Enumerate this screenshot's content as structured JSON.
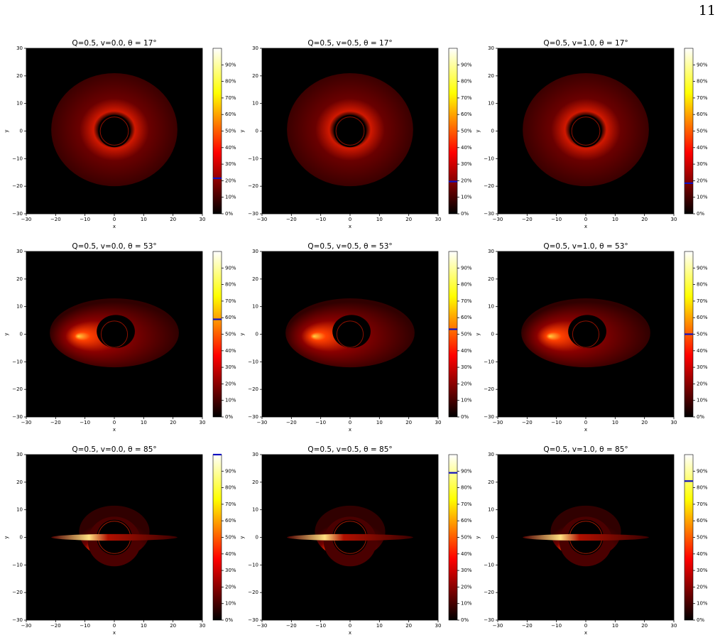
{
  "page_number": "11",
  "chart_data": [
    {
      "type": "image",
      "title": "Q=0.5, v=0.0, θ = 17°",
      "xlabel": "x",
      "ylabel": "y",
      "xlim": [
        -30,
        30
      ],
      "ylim": [
        -30,
        30
      ],
      "xticks": [
        {
          "value": -30,
          "label": "−30"
        },
        {
          "value": -20,
          "label": "−20"
        },
        {
          "value": -10,
          "label": "−10"
        },
        0,
        10,
        20,
        30
      ],
      "yticks": [
        {
          "value": -30,
          "label": "−30"
        },
        {
          "value": -20,
          "label": "−20"
        },
        {
          "value": -10,
          "label": "−10"
        },
        0,
        10,
        20,
        30
      ],
      "colorbar": {
        "lim": [
          0,
          100
        ],
        "ticks": [
          {
            "value": 0,
            "label": "0%"
          },
          {
            "value": 10,
            "label": "10%"
          },
          {
            "value": 20,
            "label": "20%"
          },
          {
            "value": 30,
            "label": "30%"
          },
          {
            "value": 40,
            "label": "40%"
          },
          {
            "value": 50,
            "label": "50%"
          },
          {
            "value": 60,
            "label": "60%"
          },
          {
            "value": 70,
            "label": "70%"
          },
          {
            "value": 80,
            "label": "80%"
          },
          {
            "value": 90,
            "label": "90%"
          }
        ],
        "marker": 21.5,
        "marker_color": "#1010c0"
      }
    },
    {
      "type": "image",
      "title": "Q=0.5, v=0.5, θ = 17°",
      "xlabel": "x",
      "ylabel": "y",
      "xlim": [
        -30,
        30
      ],
      "ylim": [
        -30,
        30
      ],
      "xticks": [
        {
          "value": -30,
          "label": "−30"
        },
        {
          "value": -20,
          "label": "−20"
        },
        {
          "value": -10,
          "label": "−10"
        },
        0,
        10,
        20,
        30
      ],
      "yticks": [
        {
          "value": -30,
          "label": "−30"
        },
        {
          "value": -20,
          "label": "−20"
        },
        {
          "value": -10,
          "label": "−10"
        },
        0,
        10,
        20,
        30
      ],
      "colorbar": {
        "lim": [
          0,
          100
        ],
        "ticks": [
          {
            "value": 0,
            "label": "0%"
          },
          {
            "value": 10,
            "label": "10%"
          },
          {
            "value": 20,
            "label": "20%"
          },
          {
            "value": 30,
            "label": "30%"
          },
          {
            "value": 40,
            "label": "40%"
          },
          {
            "value": 50,
            "label": "50%"
          },
          {
            "value": 60,
            "label": "60%"
          },
          {
            "value": 70,
            "label": "70%"
          },
          {
            "value": 80,
            "label": "80%"
          },
          {
            "value": 90,
            "label": "90%"
          }
        ],
        "marker": 19.5,
        "marker_color": "#1010c0"
      }
    },
    {
      "type": "image",
      "title": "Q=0.5, v=1.0, θ = 17°",
      "xlabel": "x",
      "ylabel": "y",
      "xlim": [
        -30,
        30
      ],
      "ylim": [
        -30,
        30
      ],
      "xticks": [
        {
          "value": -30,
          "label": "−30"
        },
        {
          "value": -20,
          "label": "−20"
        },
        {
          "value": -10,
          "label": "−10"
        },
        0,
        10,
        20,
        30
      ],
      "yticks": [
        {
          "value": -30,
          "label": "−30"
        },
        {
          "value": -20,
          "label": "−20"
        },
        {
          "value": -10,
          "label": "−10"
        },
        0,
        10,
        20,
        30
      ],
      "colorbar": {
        "lim": [
          0,
          100
        ],
        "ticks": [
          {
            "value": 0,
            "label": "0%"
          },
          {
            "value": 10,
            "label": "10%"
          },
          {
            "value": 20,
            "label": "20%"
          },
          {
            "value": 30,
            "label": "30%"
          },
          {
            "value": 40,
            "label": "40%"
          },
          {
            "value": 50,
            "label": "50%"
          },
          {
            "value": 60,
            "label": "60%"
          },
          {
            "value": 70,
            "label": "70%"
          },
          {
            "value": 80,
            "label": "80%"
          },
          {
            "value": 90,
            "label": "90%"
          }
        ],
        "marker": 18.5,
        "marker_color": "#1010c0"
      }
    },
    {
      "type": "image",
      "title": "Q=0.5, v=0.0, θ = 53°",
      "xlabel": "x",
      "ylabel": "y",
      "xlim": [
        -30,
        30
      ],
      "ylim": [
        -30,
        30
      ],
      "xticks": [
        {
          "value": -30,
          "label": "−30"
        },
        {
          "value": -20,
          "label": "−20"
        },
        {
          "value": -10,
          "label": "−10"
        },
        0,
        10,
        20,
        30
      ],
      "yticks": [
        {
          "value": -30,
          "label": "−30"
        },
        {
          "value": -20,
          "label": "−20"
        },
        {
          "value": -10,
          "label": "−10"
        },
        0,
        10,
        20,
        30
      ],
      "colorbar": {
        "lim": [
          0,
          100
        ],
        "ticks": [
          {
            "value": 0,
            "label": "0%"
          },
          {
            "value": 10,
            "label": "10%"
          },
          {
            "value": 20,
            "label": "20%"
          },
          {
            "value": 30,
            "label": "30%"
          },
          {
            "value": 40,
            "label": "40%"
          },
          {
            "value": 50,
            "label": "50%"
          },
          {
            "value": 60,
            "label": "60%"
          },
          {
            "value": 70,
            "label": "70%"
          },
          {
            "value": 80,
            "label": "80%"
          },
          {
            "value": 90,
            "label": "90%"
          }
        ],
        "marker": 59,
        "marker_color": "#1010c0"
      }
    },
    {
      "type": "image",
      "title": "Q=0.5, v=0.5, θ = 53°",
      "xlabel": "x",
      "ylabel": "y",
      "xlim": [
        -30,
        30
      ],
      "ylim": [
        -30,
        30
      ],
      "xticks": [
        {
          "value": -30,
          "label": "−30"
        },
        {
          "value": -20,
          "label": "−20"
        },
        {
          "value": -10,
          "label": "−10"
        },
        0,
        10,
        20,
        30
      ],
      "yticks": [
        {
          "value": -30,
          "label": "−30"
        },
        {
          "value": -20,
          "label": "−20"
        },
        {
          "value": -10,
          "label": "−10"
        },
        0,
        10,
        20,
        30
      ],
      "colorbar": {
        "lim": [
          0,
          100
        ],
        "ticks": [
          {
            "value": 0,
            "label": "0%"
          },
          {
            "value": 10,
            "label": "10%"
          },
          {
            "value": 20,
            "label": "20%"
          },
          {
            "value": 30,
            "label": "30%"
          },
          {
            "value": 40,
            "label": "40%"
          },
          {
            "value": 50,
            "label": "50%"
          },
          {
            "value": 60,
            "label": "60%"
          },
          {
            "value": 70,
            "label": "70%"
          },
          {
            "value": 80,
            "label": "80%"
          },
          {
            "value": 90,
            "label": "90%"
          }
        ],
        "marker": 53,
        "marker_color": "#1010c0"
      }
    },
    {
      "type": "image",
      "title": "Q=0.5, v=1.0, θ = 53°",
      "xlabel": "x",
      "ylabel": "y",
      "xlim": [
        -30,
        30
      ],
      "ylim": [
        -30,
        30
      ],
      "xticks": [
        {
          "value": -30,
          "label": "−30"
        },
        {
          "value": -20,
          "label": "−20"
        },
        {
          "value": -10,
          "label": "−10"
        },
        0,
        10,
        20,
        30
      ],
      "yticks": [
        {
          "value": -30,
          "label": "−30"
        },
        {
          "value": -20,
          "label": "−20"
        },
        {
          "value": -10,
          "label": "−10"
        },
        0,
        10,
        20,
        30
      ],
      "colorbar": {
        "lim": [
          0,
          100
        ],
        "ticks": [
          {
            "value": 0,
            "label": "0%"
          },
          {
            "value": 10,
            "label": "10%"
          },
          {
            "value": 20,
            "label": "20%"
          },
          {
            "value": 30,
            "label": "30%"
          },
          {
            "value": 40,
            "label": "40%"
          },
          {
            "value": 50,
            "label": "50%"
          },
          {
            "value": 60,
            "label": "60%"
          },
          {
            "value": 70,
            "label": "70%"
          },
          {
            "value": 80,
            "label": "80%"
          },
          {
            "value": 90,
            "label": "90%"
          }
        ],
        "marker": 50,
        "marker_color": "#1010c0"
      }
    },
    {
      "type": "image",
      "title": "Q=0.5, v=0.0, θ = 85°",
      "xlabel": "x",
      "ylabel": "y",
      "xlim": [
        -30,
        30
      ],
      "ylim": [
        -30,
        30
      ],
      "xticks": [
        {
          "value": -30,
          "label": "−30"
        },
        {
          "value": -20,
          "label": "−20"
        },
        {
          "value": -10,
          "label": "−10"
        },
        0,
        10,
        20,
        30
      ],
      "yticks": [
        {
          "value": -30,
          "label": "−30"
        },
        {
          "value": -20,
          "label": "−20"
        },
        {
          "value": -10,
          "label": "−10"
        },
        0,
        10,
        20,
        30
      ],
      "colorbar": {
        "lim": [
          0,
          100
        ],
        "ticks": [
          {
            "value": 0,
            "label": "0%"
          },
          {
            "value": 10,
            "label": "10%"
          },
          {
            "value": 20,
            "label": "20%"
          },
          {
            "value": 30,
            "label": "30%"
          },
          {
            "value": 40,
            "label": "40%"
          },
          {
            "value": 50,
            "label": "50%"
          },
          {
            "value": 60,
            "label": "60%"
          },
          {
            "value": 70,
            "label": "70%"
          },
          {
            "value": 80,
            "label": "80%"
          },
          {
            "value": 90,
            "label": "90%"
          }
        ],
        "marker": 100,
        "marker_color": "#1010c0"
      }
    },
    {
      "type": "image",
      "title": "Q=0.5, v=0.5, θ = 85°",
      "xlabel": "x",
      "ylabel": "y",
      "xlim": [
        -30,
        30
      ],
      "ylim": [
        -30,
        30
      ],
      "xticks": [
        {
          "value": -30,
          "label": "−30"
        },
        {
          "value": -20,
          "label": "−20"
        },
        {
          "value": -10,
          "label": "−10"
        },
        0,
        10,
        20,
        30
      ],
      "yticks": [
        {
          "value": -30,
          "label": "−30"
        },
        {
          "value": -20,
          "label": "−20"
        },
        {
          "value": -10,
          "label": "−10"
        },
        0,
        10,
        20,
        30
      ],
      "colorbar": {
        "lim": [
          0,
          100
        ],
        "ticks": [
          {
            "value": 0,
            "label": "0%"
          },
          {
            "value": 10,
            "label": "10%"
          },
          {
            "value": 20,
            "label": "20%"
          },
          {
            "value": 30,
            "label": "30%"
          },
          {
            "value": 40,
            "label": "40%"
          },
          {
            "value": 50,
            "label": "50%"
          },
          {
            "value": 60,
            "label": "60%"
          },
          {
            "value": 70,
            "label": "70%"
          },
          {
            "value": 80,
            "label": "80%"
          },
          {
            "value": 90,
            "label": "90%"
          }
        ],
        "marker": 89,
        "marker_color": "#1010c0"
      }
    },
    {
      "type": "image",
      "title": "Q=0.5, v=1.0, θ = 85°",
      "xlabel": "x",
      "ylabel": "y",
      "xlim": [
        -30,
        30
      ],
      "ylim": [
        -30,
        30
      ],
      "xticks": [
        {
          "value": -30,
          "label": "−30"
        },
        {
          "value": -20,
          "label": "−20"
        },
        {
          "value": -10,
          "label": "−10"
        },
        0,
        10,
        20,
        30
      ],
      "yticks": [
        {
          "value": -30,
          "label": "−30"
        },
        {
          "value": -20,
          "label": "−20"
        },
        {
          "value": -10,
          "label": "−10"
        },
        0,
        10,
        20,
        30
      ],
      "colorbar": {
        "lim": [
          0,
          100
        ],
        "ticks": [
          {
            "value": 0,
            "label": "0%"
          },
          {
            "value": 10,
            "label": "10%"
          },
          {
            "value": 20,
            "label": "20%"
          },
          {
            "value": 30,
            "label": "30%"
          },
          {
            "value": 40,
            "label": "40%"
          },
          {
            "value": 50,
            "label": "50%"
          },
          {
            "value": 60,
            "label": "60%"
          },
          {
            "value": 70,
            "label": "70%"
          },
          {
            "value": 80,
            "label": "80%"
          },
          {
            "value": 90,
            "label": "90%"
          }
        ],
        "marker": 84,
        "marker_color": "#1010c0"
      }
    }
  ]
}
